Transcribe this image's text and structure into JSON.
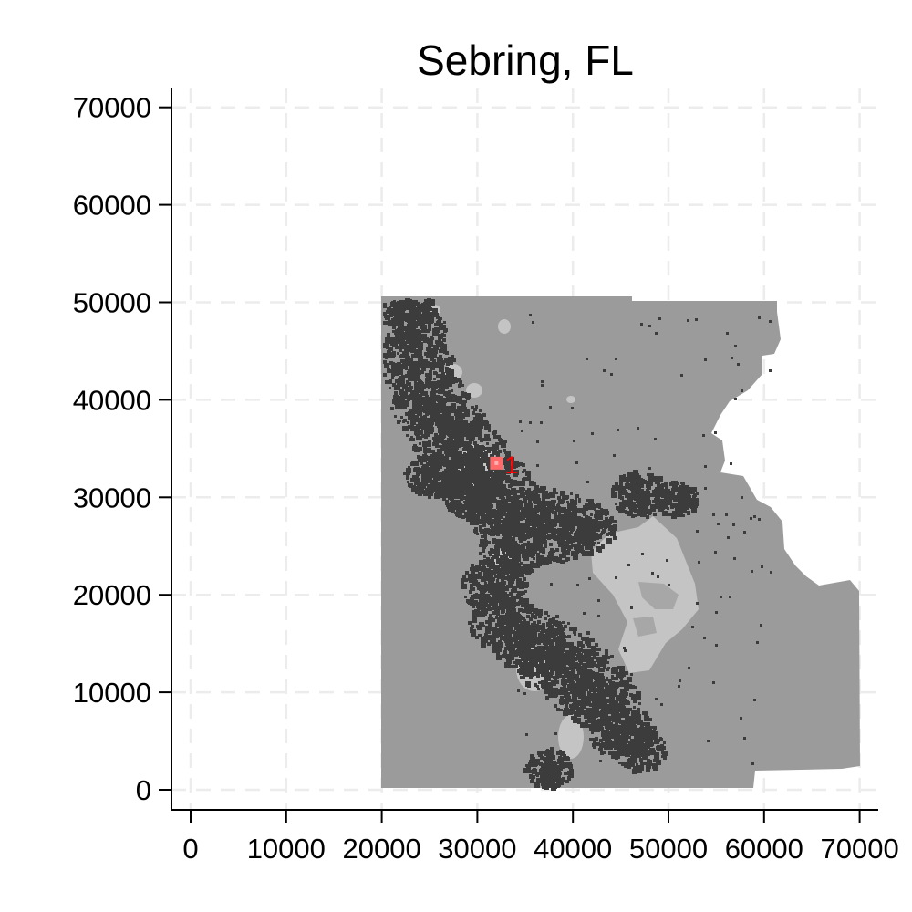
{
  "chart_data": {
    "type": "map",
    "title": "Sebring, FL",
    "xlabel": "",
    "ylabel": "",
    "xlim": [
      -2000,
      72000
    ],
    "ylim": [
      -2000,
      72000
    ],
    "x_ticks": [
      0,
      10000,
      20000,
      30000,
      40000,
      50000,
      60000,
      70000
    ],
    "y_ticks": [
      0,
      10000,
      20000,
      30000,
      40000,
      50000,
      60000,
      70000
    ],
    "grid": true,
    "colors": {
      "background_land": "#9b9b9b",
      "urban": "#3c3c3c",
      "water": "#c4c4c4",
      "marker": "#ff6b6b",
      "marker_label": "#ff0000"
    },
    "marker": {
      "label": "1",
      "x": 32000,
      "y": 33500
    }
  }
}
